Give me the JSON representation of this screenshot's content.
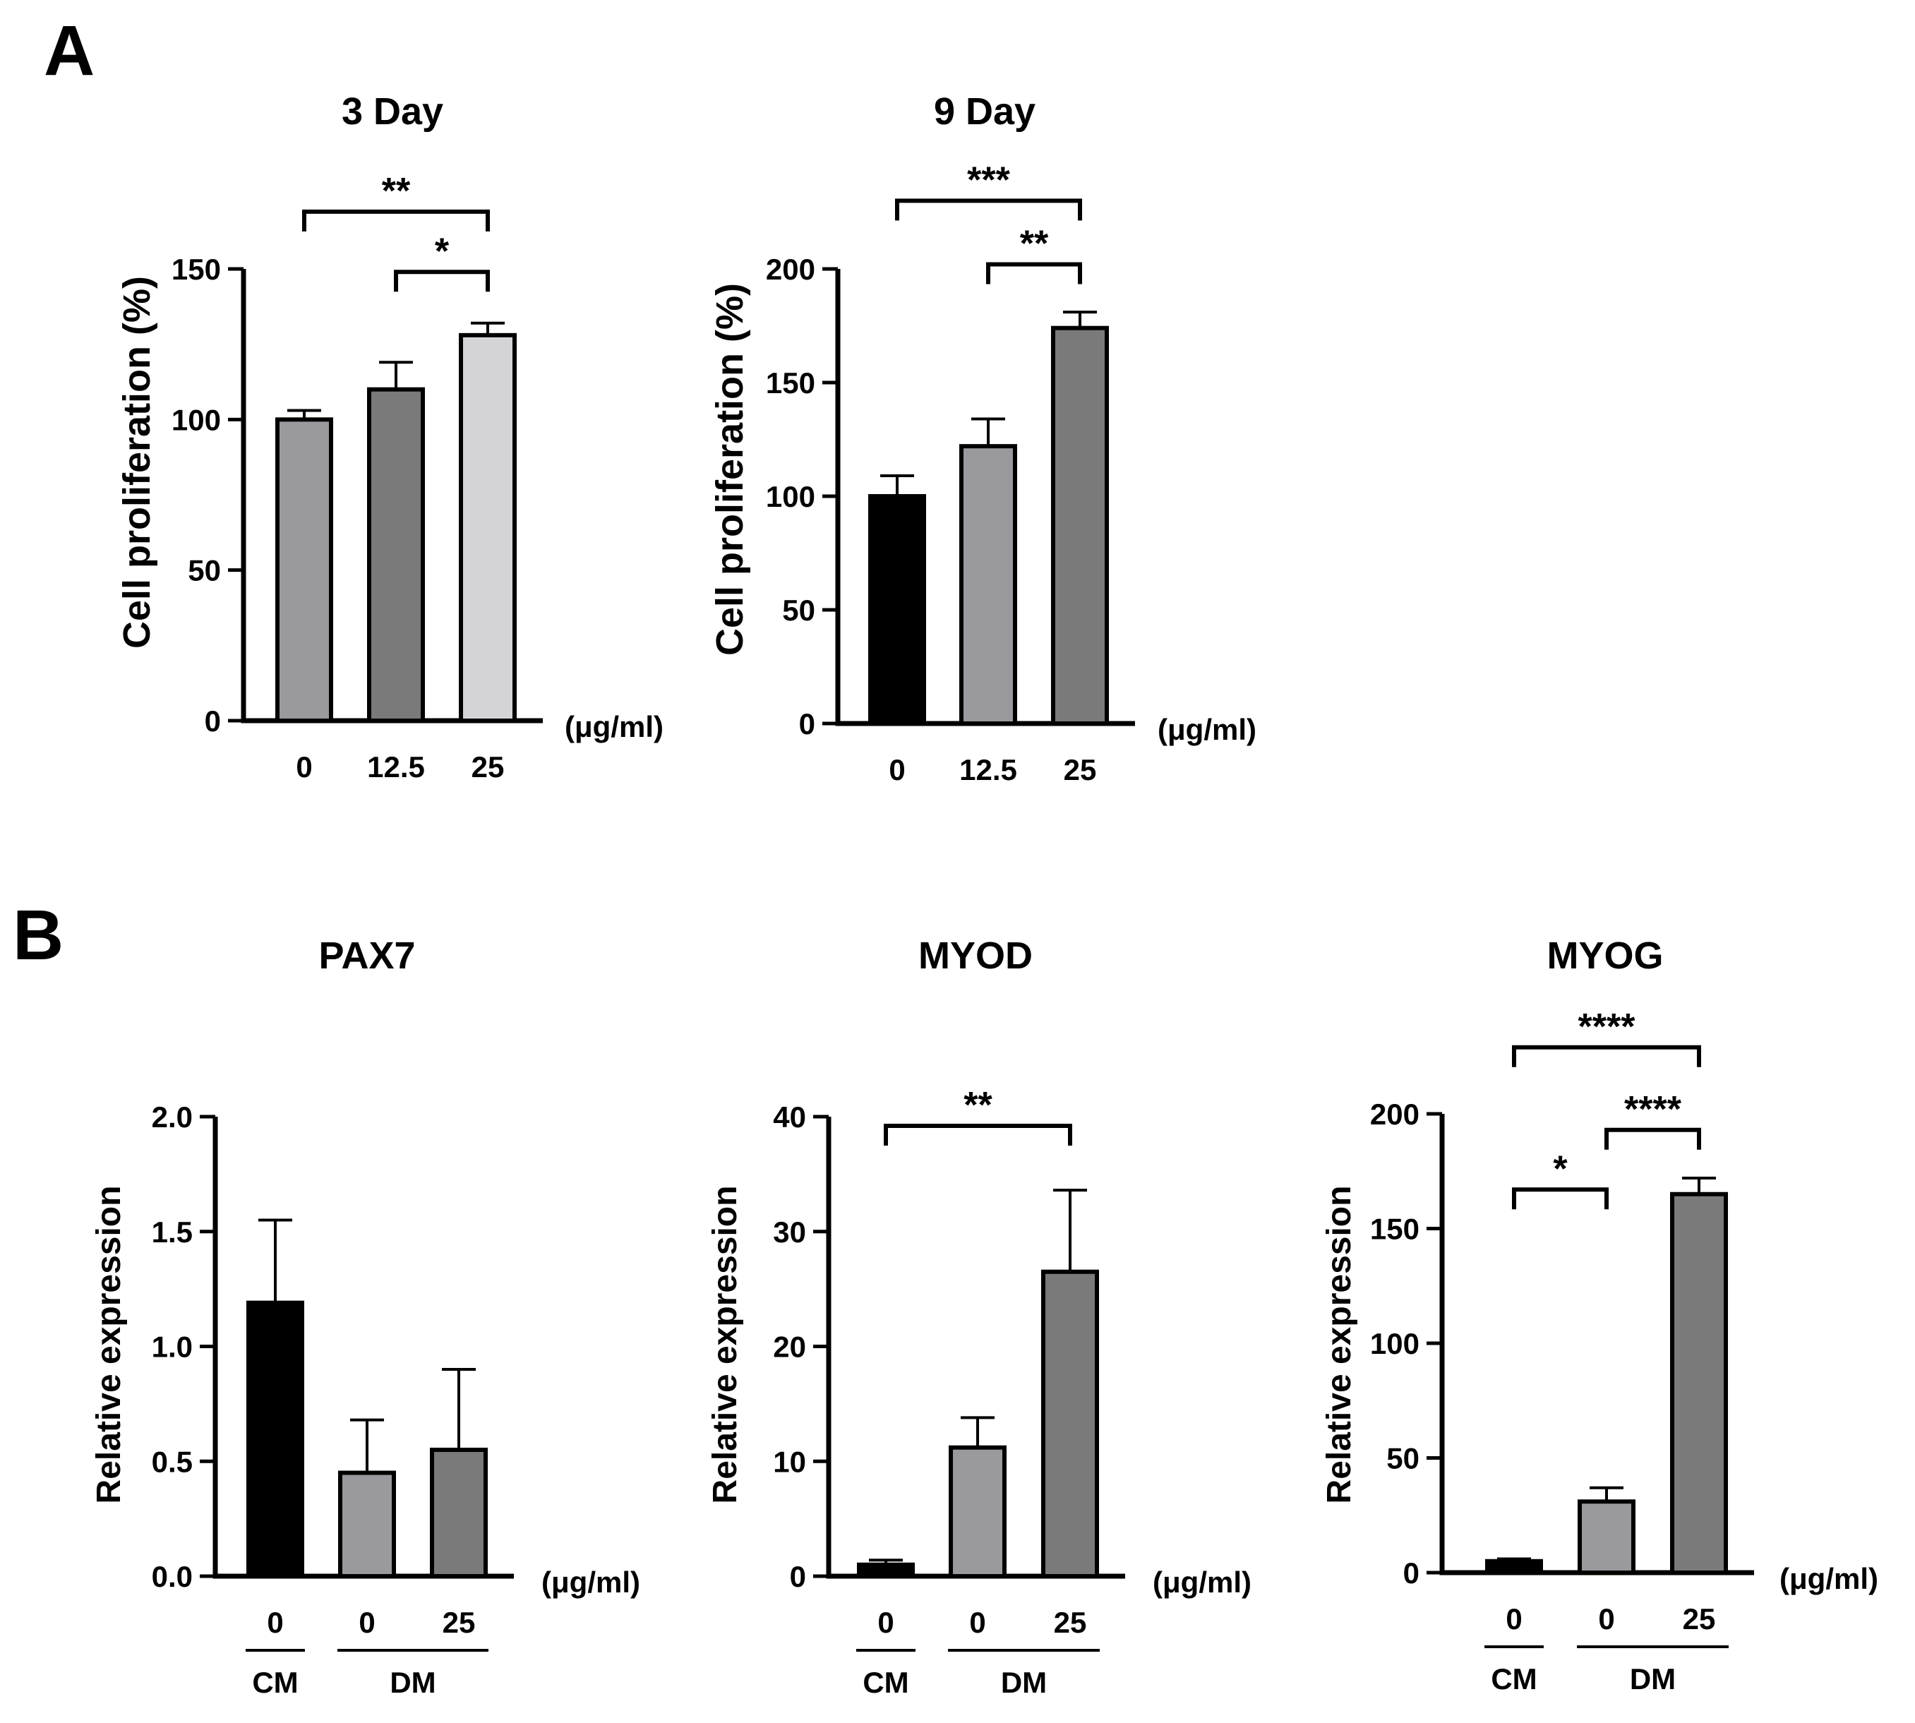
{
  "panels": [
    {
      "label": "A"
    },
    {
      "label": "B"
    }
  ],
  "chart_data": [
    {
      "id": "c1",
      "type": "bar",
      "panel": "A",
      "title": "3 Day",
      "xlabel": "",
      "ylabel": "Cell proliferation (%)",
      "unit_label": "(μg/ml)",
      "categories": [
        "0",
        "12.5",
        "25"
      ],
      "values": [
        100,
        110,
        128
      ],
      "errors": [
        3,
        9,
        4
      ],
      "colors": [
        "#9a9a9e",
        "#7a7a7a",
        "#d4d4d6"
      ],
      "ylim": [
        0,
        150
      ],
      "yticks": [
        0,
        50,
        100,
        150
      ],
      "ytick_labels": [
        "0",
        "50",
        "100",
        "150"
      ],
      "significance": [
        {
          "from": 0,
          "to": 2,
          "label": "**",
          "y": 169
        },
        {
          "from": 1,
          "to": 2,
          "label": "*",
          "y": 149
        }
      ],
      "groups": []
    },
    {
      "id": "c2",
      "type": "bar",
      "panel": "A",
      "title": "9 Day",
      "xlabel": "",
      "ylabel": "Cell proliferation (%)",
      "unit_label": "(μg/ml)",
      "categories": [
        "0",
        "12.5",
        "25"
      ],
      "values": [
        100,
        122,
        174
      ],
      "errors": [
        9,
        12,
        7
      ],
      "colors": [
        "#000000",
        "#9a9a9e",
        "#7a7a7a"
      ],
      "ylim": [
        0,
        200
      ],
      "yticks": [
        0,
        50,
        100,
        150,
        200
      ],
      "ytick_labels": [
        "0",
        "50",
        "100",
        "150",
        "200"
      ],
      "significance": [
        {
          "from": 0,
          "to": 2,
          "label": "***",
          "y": 230
        },
        {
          "from": 1,
          "to": 2,
          "label": "**",
          "y": 202
        }
      ],
      "groups": []
    },
    {
      "id": "c3",
      "type": "bar",
      "panel": "B",
      "title": "PAX7",
      "xlabel": "",
      "ylabel": "Relative expression",
      "unit_label": "(μg/ml)",
      "categories": [
        "0",
        "0",
        "25"
      ],
      "values": [
        1.19,
        0.45,
        0.55
      ],
      "errors": [
        0.36,
        0.23,
        0.35
      ],
      "colors": [
        "#000000",
        "#9a9a9e",
        "#7a7a7a"
      ],
      "ylim": [
        0,
        2.0
      ],
      "yticks": [
        0,
        0.5,
        1.0,
        1.5,
        2.0
      ],
      "ytick_labels": [
        "0.0",
        "0.5",
        "1.0",
        "1.5",
        "2.0"
      ],
      "significance": [],
      "groups": [
        {
          "label": "CM",
          "from": 0,
          "to": 0
        },
        {
          "label": "DM",
          "from": 1,
          "to": 2
        }
      ]
    },
    {
      "id": "c4",
      "type": "bar",
      "panel": "B",
      "title": "MYOD",
      "xlabel": "",
      "ylabel": "Relative expression",
      "unit_label": "(μg/ml)",
      "categories": [
        "0",
        "0",
        "25"
      ],
      "values": [
        1.0,
        11.2,
        26.5
      ],
      "errors": [
        0.4,
        2.6,
        7.1
      ],
      "colors": [
        "#000000",
        "#9a9a9e",
        "#7a7a7a"
      ],
      "ylim": [
        0,
        40
      ],
      "yticks": [
        0,
        10,
        20,
        30,
        40
      ],
      "ytick_labels": [
        "0",
        "10",
        "20",
        "30",
        "40"
      ],
      "significance": [
        {
          "from": 0,
          "to": 2,
          "label": "**",
          "y": 39.2
        }
      ],
      "groups": [
        {
          "label": "CM",
          "from": 0,
          "to": 0
        },
        {
          "label": "DM",
          "from": 1,
          "to": 2
        }
      ]
    },
    {
      "id": "c5",
      "type": "bar",
      "panel": "B",
      "title": "MYOG",
      "xlabel": "",
      "ylabel": "Relative expression",
      "unit_label": "(μg/ml)",
      "categories": [
        "0",
        "0",
        "25"
      ],
      "values": [
        5,
        31,
        165
      ],
      "errors": [
        1,
        6,
        7
      ],
      "colors": [
        "#000000",
        "#9a9a9e",
        "#7a7a7a"
      ],
      "ylim": [
        0,
        200
      ],
      "yticks": [
        0,
        50,
        100,
        150,
        200
      ],
      "ytick_labels": [
        "0",
        "50",
        "100",
        "150",
        "200"
      ],
      "significance": [
        {
          "from": 0,
          "to": 2,
          "label": "****",
          "y": 229
        },
        {
          "from": 1,
          "to": 2,
          "label": "****",
          "y": 193
        },
        {
          "from": 0,
          "to": 1,
          "label": "*",
          "y": 167
        }
      ],
      "groups": [
        {
          "label": "CM",
          "from": 0,
          "to": 0
        },
        {
          "label": "DM",
          "from": 1,
          "to": 2
        }
      ]
    }
  ]
}
